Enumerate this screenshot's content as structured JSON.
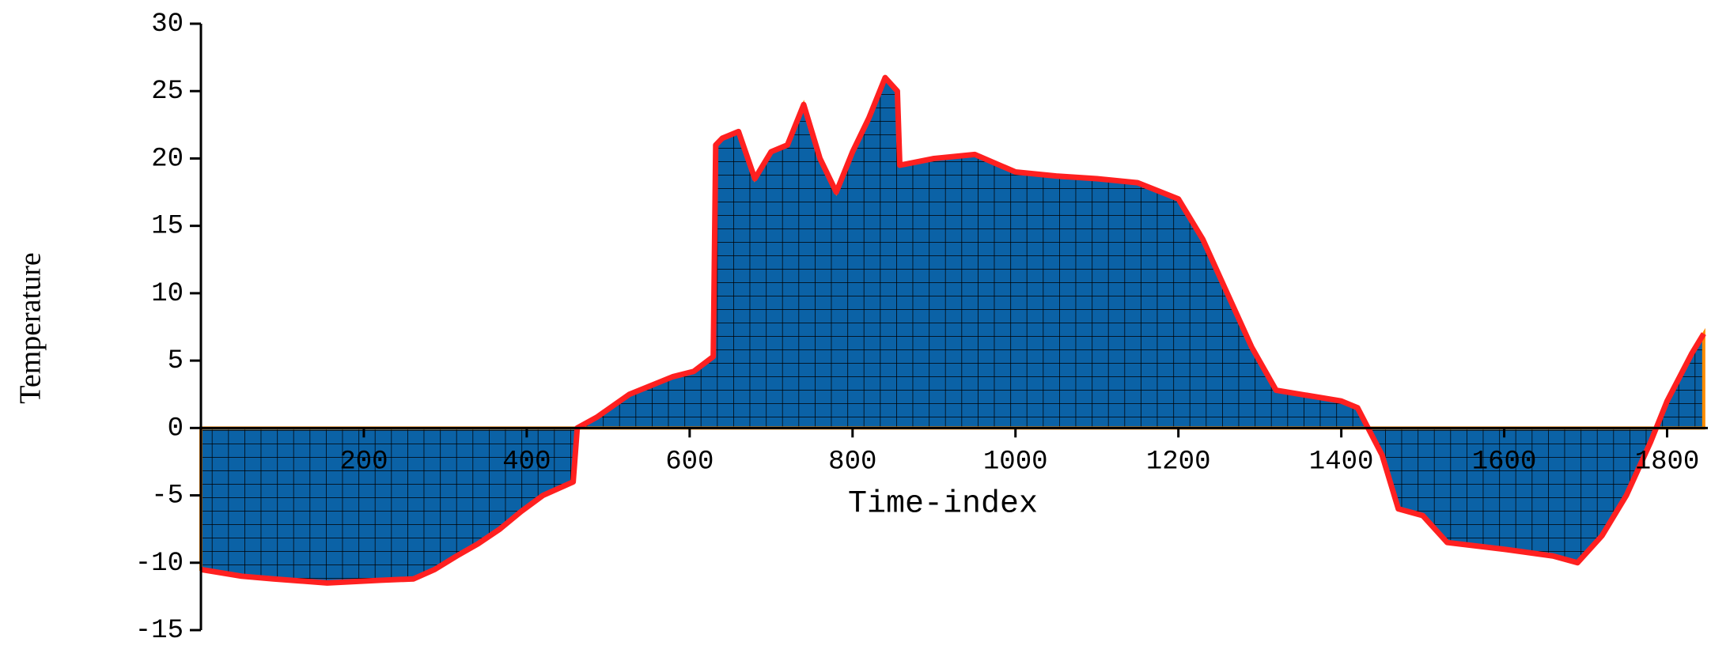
{
  "chart_data": {
    "type": "area",
    "xlabel": "Time-index",
    "ylabel": "Temperature",
    "x": [
      0,
      50,
      89,
      155,
      221,
      261,
      287,
      314,
      340,
      367,
      393,
      420,
      457,
      462,
      486,
      526,
      579,
      605,
      629,
      632,
      640,
      660,
      680,
      700,
      720,
      740,
      760,
      780,
      800,
      820,
      840,
      855,
      858,
      900,
      950,
      1000,
      1050,
      1100,
      1150,
      1200,
      1230,
      1260,
      1290,
      1320,
      1400,
      1420,
      1450,
      1470,
      1500,
      1530,
      1600,
      1660,
      1690,
      1720,
      1750,
      1780,
      1800,
      1830,
      1845
    ],
    "values": [
      -10.5,
      -11,
      -11.2,
      -11.5,
      -11.3,
      -11.2,
      -10.5,
      -9.5,
      -8.6,
      -7.5,
      -6.2,
      -5,
      -4,
      0,
      0.8,
      2.5,
      3.8,
      4.2,
      5.3,
      21,
      21.5,
      22,
      18.5,
      20.5,
      21,
      24,
      20,
      17.5,
      20.5,
      23,
      26,
      25,
      19.5,
      20,
      20.3,
      19,
      18.7,
      18.5,
      18.2,
      17,
      14,
      10,
      6,
      2.8,
      2,
      1.5,
      -2,
      -6,
      -6.5,
      -8.5,
      -9,
      -9.5,
      -10,
      -8,
      -5,
      -1,
      2,
      5.5,
      7
    ],
    "color": "#0b62a6",
    "line_color": "#ff2020",
    "edge_color": "#ff8c00",
    "xlim": [
      0,
      1850
    ],
    "xticks": [
      200,
      400,
      600,
      800,
      1000,
      1200,
      1400,
      1600,
      1800
    ],
    "ylim": [
      -15,
      30
    ],
    "yticks": [
      -15,
      -10,
      -5,
      0,
      5,
      10,
      15,
      20,
      25,
      30
    ]
  }
}
